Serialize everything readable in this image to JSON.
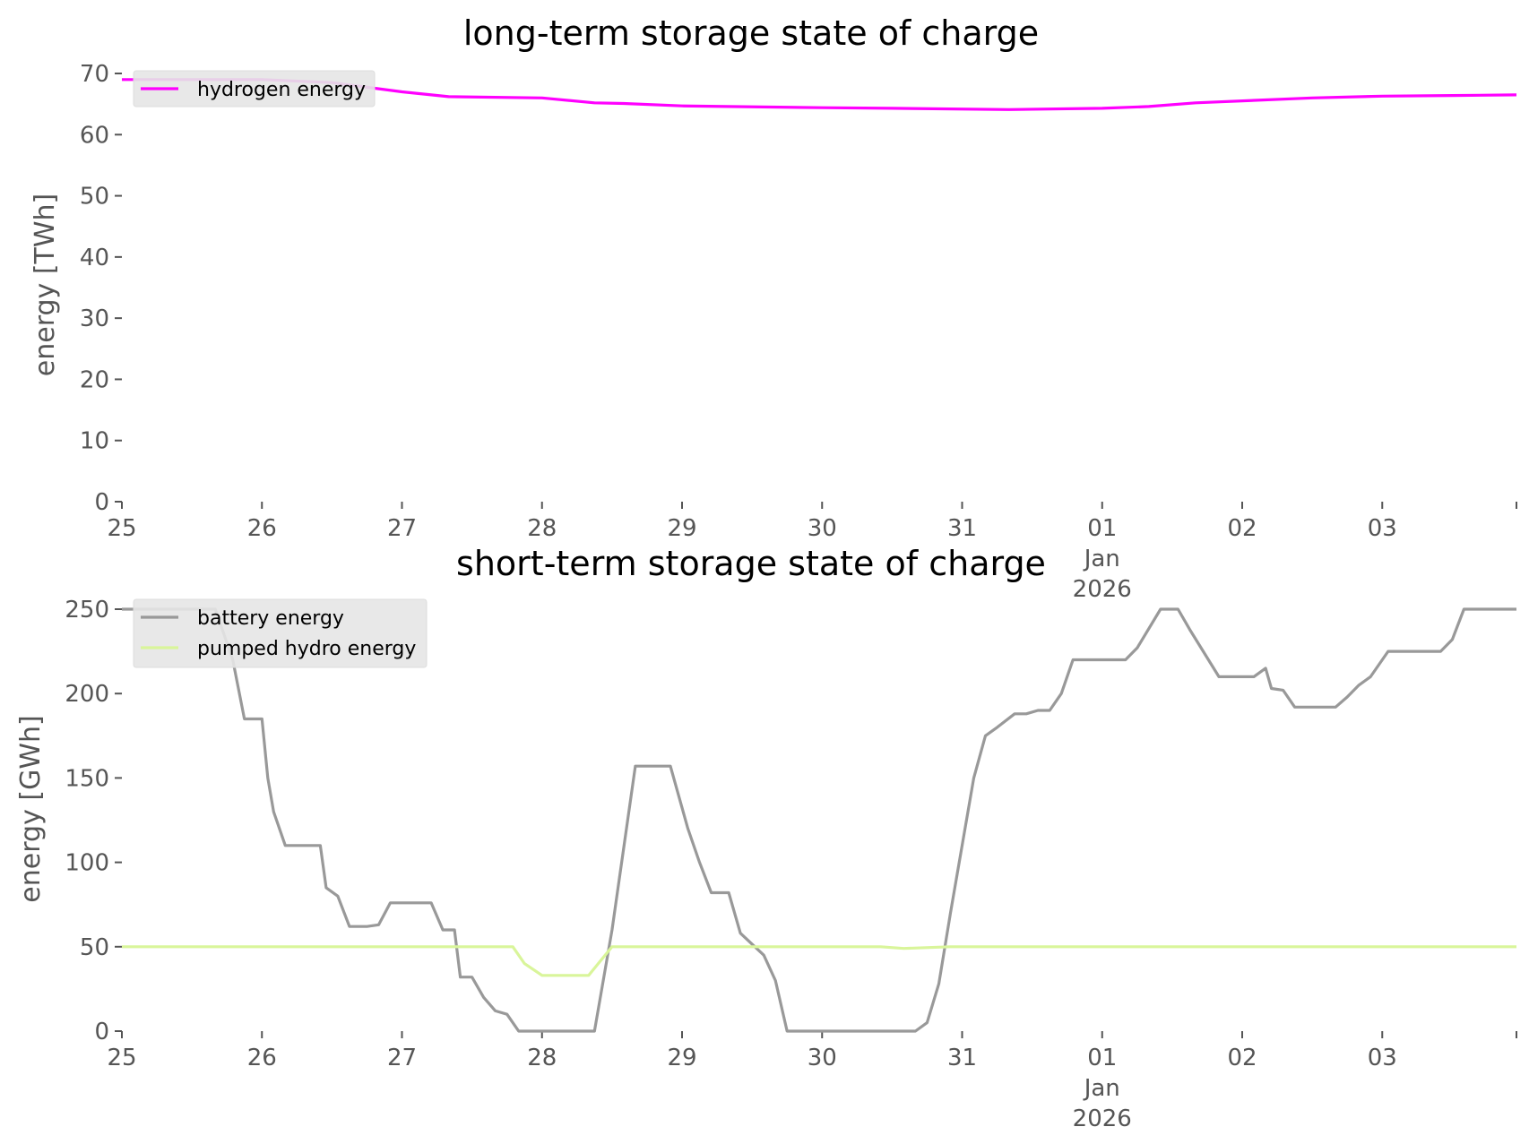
{
  "chart_data": [
    {
      "type": "line",
      "title": "long-term storage state of charge",
      "ylabel": "energy [TWh]",
      "xlabel": "",
      "ylim": [
        0,
        70
      ],
      "yticks": [
        0,
        10,
        20,
        30,
        40,
        50,
        60,
        70
      ],
      "xlim": [
        "2025-12-25",
        "2026-01-03T23:00"
      ],
      "x_tick_labels": [
        {
          "date": "2025-12-25",
          "lines": [
            "25"
          ]
        },
        {
          "date": "2025-12-26",
          "lines": [
            "26"
          ]
        },
        {
          "date": "2025-12-27",
          "lines": [
            "27"
          ]
        },
        {
          "date": "2025-12-28",
          "lines": [
            "28"
          ]
        },
        {
          "date": "2025-12-29",
          "lines": [
            "29"
          ]
        },
        {
          "date": "2025-12-30",
          "lines": [
            "30"
          ]
        },
        {
          "date": "2025-12-31",
          "lines": [
            "31"
          ]
        },
        {
          "date": "2026-01-01",
          "lines": [
            "01",
            "Jan",
            "2026"
          ]
        },
        {
          "date": "2026-01-02",
          "lines": [
            "02"
          ]
        },
        {
          "date": "2026-01-03",
          "lines": [
            "03"
          ]
        }
      ],
      "grid": false,
      "legend": "upper left",
      "series": [
        {
          "name": "hydrogen energy",
          "color": "#ff00ff",
          "points": [
            [
              "2025-12-25T00:00",
              69.0
            ],
            [
              "2025-12-25T12:00",
              69.0
            ],
            [
              "2025-12-26T00:00",
              69.0
            ],
            [
              "2025-12-26T12:00",
              68.5
            ],
            [
              "2025-12-27T00:00",
              67.0
            ],
            [
              "2025-12-27T08:00",
              66.2
            ],
            [
              "2025-12-28T00:00",
              66.0
            ],
            [
              "2025-12-28T09:00",
              65.2
            ],
            [
              "2025-12-28T14:00",
              65.1
            ],
            [
              "2025-12-29T00:00",
              64.7
            ],
            [
              "2025-12-30T00:00",
              64.4
            ],
            [
              "2025-12-30T12:00",
              64.3
            ],
            [
              "2025-12-31T08:00",
              64.1
            ],
            [
              "2026-01-01T00:00",
              64.3
            ],
            [
              "2026-01-01T08:00",
              64.6
            ],
            [
              "2026-01-01T16:00",
              65.2
            ],
            [
              "2026-01-02T12:00",
              66.0
            ],
            [
              "2026-01-03T00:00",
              66.3
            ],
            [
              "2026-01-03T12:00",
              66.4
            ],
            [
              "2026-01-03T23:00",
              66.5
            ]
          ]
        }
      ]
    },
    {
      "type": "line",
      "title": "short-term storage state of charge",
      "ylabel": "energy [GWh]",
      "xlabel": "",
      "ylim": [
        0,
        250
      ],
      "yticks": [
        0,
        50,
        100,
        150,
        200,
        250
      ],
      "xlim": [
        "2025-12-25",
        "2026-01-03T23:00"
      ],
      "x_tick_labels": [
        {
          "date": "2025-12-25",
          "lines": [
            "25"
          ]
        },
        {
          "date": "2025-12-26",
          "lines": [
            "26"
          ]
        },
        {
          "date": "2025-12-27",
          "lines": [
            "27"
          ]
        },
        {
          "date": "2025-12-28",
          "lines": [
            "28"
          ]
        },
        {
          "date": "2025-12-29",
          "lines": [
            "29"
          ]
        },
        {
          "date": "2025-12-30",
          "lines": [
            "30"
          ]
        },
        {
          "date": "2025-12-31",
          "lines": [
            "31"
          ]
        },
        {
          "date": "2026-01-01",
          "lines": [
            "01",
            "Jan",
            "2026"
          ]
        },
        {
          "date": "2026-01-02",
          "lines": [
            "02"
          ]
        },
        {
          "date": "2026-01-03",
          "lines": [
            "03"
          ]
        }
      ],
      "grid": false,
      "legend": "upper left",
      "series": [
        {
          "name": "battery energy",
          "color": "#999999",
          "points": [
            [
              "2025-12-25T00:00",
              250
            ],
            [
              "2025-12-25T16:00",
              250
            ],
            [
              "2025-12-25T19:00",
              220
            ],
            [
              "2025-12-25T21:00",
              185
            ],
            [
              "2025-12-26T00:00",
              185
            ],
            [
              "2025-12-26T01:00",
              150
            ],
            [
              "2025-12-26T02:00",
              130
            ],
            [
              "2025-12-26T04:00",
              110
            ],
            [
              "2025-12-26T06:00",
              110
            ],
            [
              "2025-12-26T10:00",
              110
            ],
            [
              "2025-12-26T11:00",
              85
            ],
            [
              "2025-12-26T13:00",
              80
            ],
            [
              "2025-12-26T15:00",
              62
            ],
            [
              "2025-12-26T18:00",
              62
            ],
            [
              "2025-12-26T20:00",
              63
            ],
            [
              "2025-12-26T22:00",
              76
            ],
            [
              "2025-12-27T02:00",
              76
            ],
            [
              "2025-12-27T05:00",
              76
            ],
            [
              "2025-12-27T07:00",
              60
            ],
            [
              "2025-12-27T09:00",
              60
            ],
            [
              "2025-12-27T10:00",
              32
            ],
            [
              "2025-12-27T12:00",
              32
            ],
            [
              "2025-12-27T14:00",
              20
            ],
            [
              "2025-12-27T16:00",
              12
            ],
            [
              "2025-12-27T18:00",
              10
            ],
            [
              "2025-12-27T20:00",
              0
            ],
            [
              "2025-12-28T00:00",
              0
            ],
            [
              "2025-12-28T09:00",
              0
            ],
            [
              "2025-12-28T12:00",
              60
            ],
            [
              "2025-12-28T16:00",
              157
            ],
            [
              "2025-12-28T22:00",
              157
            ],
            [
              "2025-12-29T01:00",
              120
            ],
            [
              "2025-12-29T03:00",
              100
            ],
            [
              "2025-12-29T05:00",
              82
            ],
            [
              "2025-12-29T08:00",
              82
            ],
            [
              "2025-12-29T10:00",
              58
            ],
            [
              "2025-12-29T14:00",
              45
            ],
            [
              "2025-12-29T16:00",
              30
            ],
            [
              "2025-12-29T18:00",
              0
            ],
            [
              "2025-12-30T00:00",
              0
            ],
            [
              "2025-12-30T12:00",
              0
            ],
            [
              "2025-12-30T16:00",
              0
            ],
            [
              "2025-12-30T18:00",
              5
            ],
            [
              "2025-12-30T20:00",
              28
            ],
            [
              "2025-12-30T22:00",
              70
            ],
            [
              "2025-12-31T02:00",
              150
            ],
            [
              "2025-12-31T04:00",
              175
            ],
            [
              "2025-12-31T06:00",
              180
            ],
            [
              "2025-12-31T09:00",
              188
            ],
            [
              "2025-12-31T11:00",
              188
            ],
            [
              "2025-12-31T13:00",
              190
            ],
            [
              "2025-12-31T15:00",
              190
            ],
            [
              "2025-12-31T17:00",
              200
            ],
            [
              "2025-12-31T19:00",
              220
            ],
            [
              "2026-01-01T04:00",
              220
            ],
            [
              "2026-01-01T06:00",
              227
            ],
            [
              "2026-01-01T10:00",
              250
            ],
            [
              "2026-01-01T13:00",
              250
            ],
            [
              "2026-01-01T15:00",
              238
            ],
            [
              "2026-01-01T20:00",
              210
            ],
            [
              "2026-01-02T02:00",
              210
            ],
            [
              "2026-01-02T04:00",
              215
            ],
            [
              "2026-01-02T05:00",
              203
            ],
            [
              "2026-01-02T07:00",
              202
            ],
            [
              "2026-01-02T09:00",
              192
            ],
            [
              "2026-01-02T16:00",
              192
            ],
            [
              "2026-01-02T18:00",
              198
            ],
            [
              "2026-01-02T20:00",
              205
            ],
            [
              "2026-01-02T22:00",
              210
            ],
            [
              "2026-01-03T01:00",
              225
            ],
            [
              "2026-01-03T05:00",
              225
            ],
            [
              "2026-01-03T10:00",
              225
            ],
            [
              "2026-01-03T12:00",
              232
            ],
            [
              "2026-01-03T14:00",
              250
            ],
            [
              "2026-01-03T23:00",
              250
            ]
          ]
        },
        {
          "name": "pumped hydro energy",
          "color": "#d9f59a",
          "points": [
            [
              "2025-12-25T00:00",
              50
            ],
            [
              "2025-12-26T00:00",
              50
            ],
            [
              "2025-12-27T00:00",
              50
            ],
            [
              "2025-12-27T19:00",
              50
            ],
            [
              "2025-12-27T21:00",
              40
            ],
            [
              "2025-12-28T00:00",
              33
            ],
            [
              "2025-12-28T08:00",
              33
            ],
            [
              "2025-12-28T12:00",
              50
            ],
            [
              "2025-12-29T00:00",
              50
            ],
            [
              "2025-12-30T00:00",
              50
            ],
            [
              "2025-12-30T10:00",
              50
            ],
            [
              "2025-12-30T14:00",
              49
            ],
            [
              "2025-12-30T22:00",
              50
            ],
            [
              "2026-01-01T00:00",
              50
            ],
            [
              "2026-01-02T00:00",
              50
            ],
            [
              "2026-01-03T00:00",
              50
            ],
            [
              "2026-01-03T23:00",
              50
            ]
          ]
        }
      ]
    }
  ]
}
